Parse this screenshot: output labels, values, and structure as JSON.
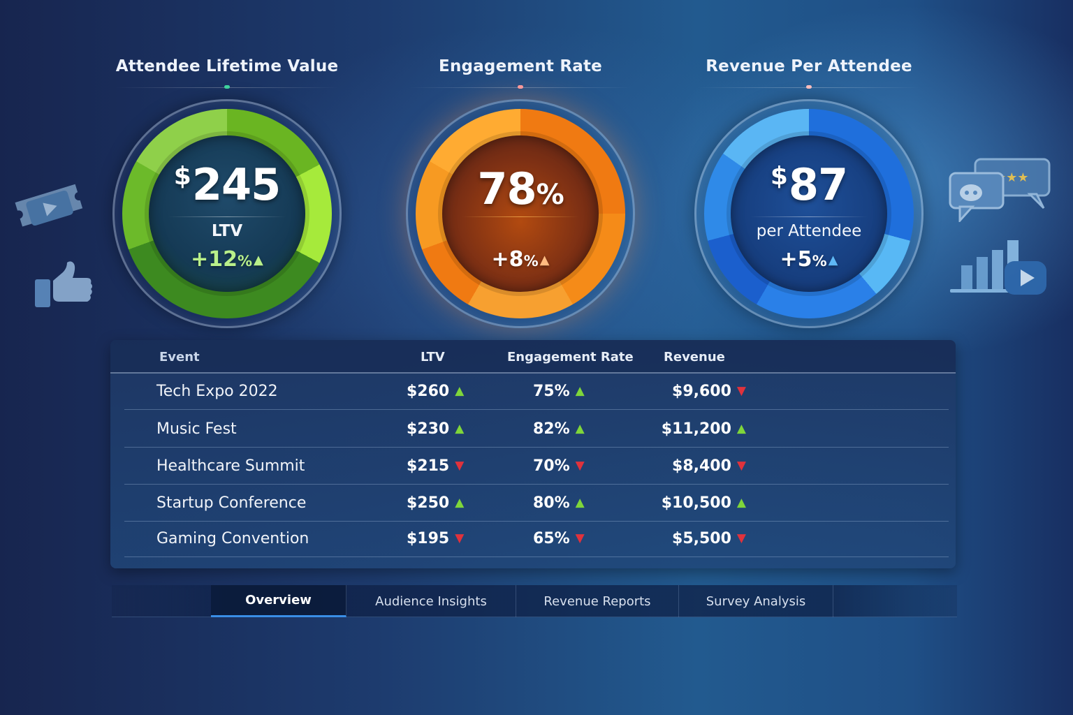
{
  "kpis": {
    "ltv": {
      "title": "Attendee Lifetime Value",
      "currency": "$",
      "value": "245",
      "label": "LTV",
      "change": "+12",
      "change_unit": "%",
      "trend": "up",
      "accent_color": "#6ab522"
    },
    "engagement": {
      "title": "Engagement Rate",
      "value": "78",
      "unit": "%",
      "change": "+8",
      "change_unit": "%",
      "trend": "up",
      "accent_color": "#f07a12"
    },
    "revenue": {
      "title": "Revenue Per Attendee",
      "currency": "$",
      "value": "87",
      "label": "per Attendee",
      "change": "+5",
      "change_unit": "%",
      "trend": "up",
      "accent_color": "#1f6fdc"
    }
  },
  "icons": {
    "left": [
      "ticket-play-icon",
      "thumbs-up-icon"
    ],
    "right": [
      "review-chat-stars-icon",
      "bar-chart-play-icon"
    ]
  },
  "table": {
    "headers": {
      "event": "Event",
      "ltv": "LTV",
      "engagement": "Engagement Rate",
      "revenue": "Revenue"
    },
    "rows": [
      {
        "event": "Tech Expo 2022",
        "ltv": "$260",
        "ltv_trend": "up",
        "engagement": "75%",
        "engagement_trend": "up",
        "revenue": "$9,600",
        "revenue_trend": "down"
      },
      {
        "event": "Music Fest",
        "ltv": "$230",
        "ltv_trend": "up",
        "engagement": "82%",
        "engagement_trend": "up",
        "revenue": "$11,200",
        "revenue_trend": "up"
      },
      {
        "event": "Healthcare Summit",
        "ltv": "$215",
        "ltv_trend": "down",
        "engagement": "70%",
        "engagement_trend": "down",
        "revenue": "$8,400",
        "revenue_trend": "down"
      },
      {
        "event": "Startup Conference",
        "ltv": "$250",
        "ltv_trend": "up",
        "engagement": "80%",
        "engagement_trend": "up",
        "revenue": "$10,500",
        "revenue_trend": "up"
      },
      {
        "event": "Gaming Convention",
        "ltv": "$195",
        "ltv_trend": "down",
        "engagement": "65%",
        "engagement_trend": "down",
        "revenue": "$5,500",
        "revenue_trend": "down"
      }
    ]
  },
  "tabs": [
    {
      "label": "Overview",
      "active": true
    },
    {
      "label": "Audience Insights",
      "active": false
    },
    {
      "label": "Revenue Reports",
      "active": false
    },
    {
      "label": "Survey Analysis",
      "active": false
    }
  ],
  "colors": {
    "up": "#7fd63a",
    "down": "#e0323c",
    "tab_active_underline": "#3a8ee6"
  }
}
